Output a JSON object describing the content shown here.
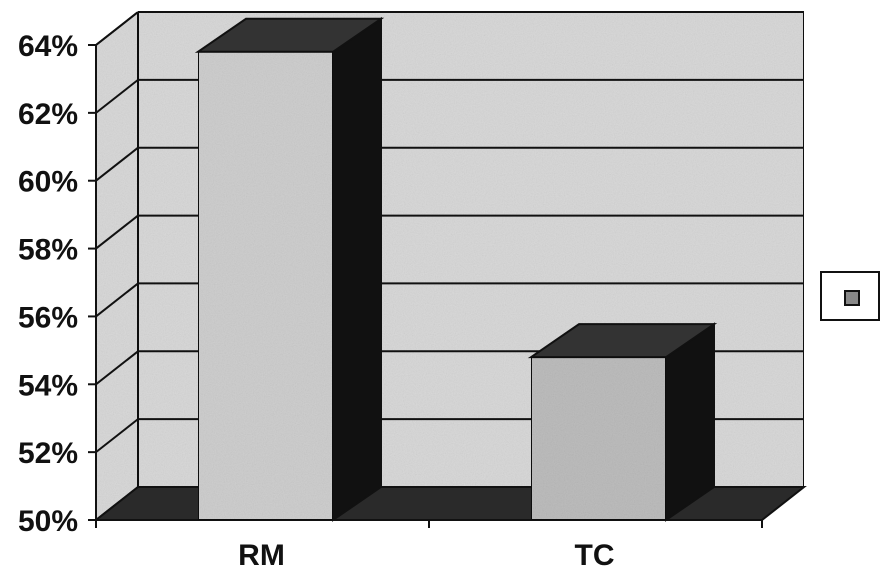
{
  "chart_data": {
    "type": "bar",
    "categories": [
      "RM",
      "TC"
    ],
    "values": [
      63.8,
      54.8
    ],
    "ylim": [
      50,
      64
    ],
    "yticks": [
      "50%",
      "52%",
      "54%",
      "56%",
      "58%",
      "60%",
      "62%",
      "64%"
    ],
    "ytick_values": [
      50,
      52,
      54,
      56,
      58,
      60,
      62,
      64
    ],
    "grid": true,
    "three_d": true,
    "legend": {
      "placement": "right",
      "entries": [
        ""
      ]
    },
    "colors": {
      "bar_RM": "#cfcfcf",
      "bar_TC": "#bdbdbd",
      "bar_side": "#111111",
      "bar_top": "#333333",
      "wall": "#d9d9d9",
      "floor": "#2a2a2a",
      "grid": "#111111"
    }
  }
}
